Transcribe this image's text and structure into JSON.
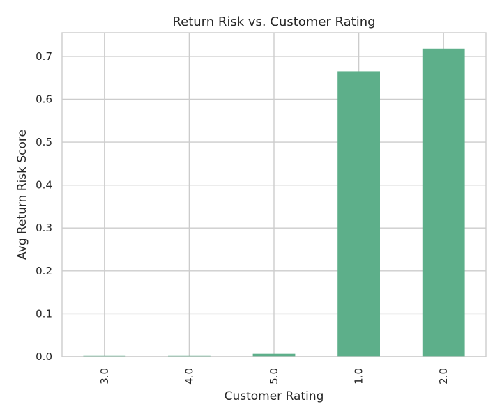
{
  "chart_data": {
    "type": "bar",
    "title": "Return Risk vs. Customer Rating",
    "xlabel": "Customer Rating",
    "ylabel": "Avg Return Risk Score",
    "categories": [
      "3.0",
      "4.0",
      "5.0",
      "1.0",
      "2.0"
    ],
    "values": [
      0.002,
      0.002,
      0.007,
      0.665,
      0.718
    ],
    "ylim": [
      0,
      0.755
    ],
    "yticks": [
      "0.0",
      "0.1",
      "0.2",
      "0.3",
      "0.4",
      "0.5",
      "0.6",
      "0.7"
    ],
    "grid": true,
    "bar_color": "#5daf8a",
    "grid_color": "#cccccc"
  }
}
